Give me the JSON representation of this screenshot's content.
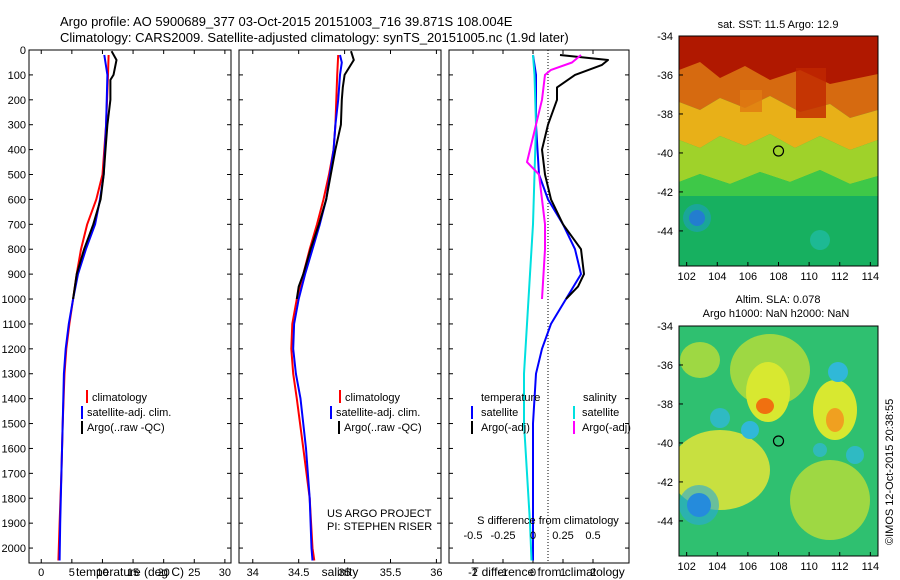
{
  "header": {
    "line1": "Argo profile: AO 5900689_377 03-Oct-2015 20151003_716 39.871S 108.004E",
    "line2": "Climatology: CARS2009. Satellite-adjusted climatology: synTS_20151005.nc (1.9d later)"
  },
  "colors": {
    "climatology": "#ff0000",
    "satellite": "#0000ff",
    "argo": "#000000",
    "salinity_satellite": "#00e0e0",
    "salinity_argo_adj": "#ff00ff"
  },
  "depth_ticks": [
    "0",
    "100",
    "200",
    "300",
    "400",
    "500",
    "600",
    "700",
    "800",
    "900",
    "1000",
    "1100",
    "1200",
    "1300",
    "1400",
    "1500",
    "1600",
    "1700",
    "1800",
    "1900",
    "2000"
  ],
  "chart_data": [
    {
      "type": "line",
      "title": "",
      "xlabel": "temperature (deg C)",
      "ylabel": "",
      "xlim": [
        -2,
        31
      ],
      "ylim": [
        2060,
        0
      ],
      "xticks": [
        "0",
        "5",
        "10",
        "15",
        "20",
        "25",
        "30"
      ],
      "xtick_values": [
        0,
        5,
        10,
        15,
        20,
        25,
        30
      ],
      "legend": [
        "climatology",
        "satellite-adj. clim.",
        "Argo(..raw -QC)"
      ],
      "legend_placement": "lower-center",
      "series": [
        {
          "name": "climatology",
          "color": "#ff0000",
          "points": [
            [
              11,
              20
            ],
            [
              10.9,
              100
            ],
            [
              10.6,
              300
            ],
            [
              10,
              500
            ],
            [
              9,
              600
            ],
            [
              7.5,
              700
            ],
            [
              6.5,
              800
            ],
            [
              5.8,
              900
            ],
            [
              5.2,
              1000
            ],
            [
              4.6,
              1100
            ],
            [
              4.1,
              1200
            ],
            [
              3.8,
              1300
            ],
            [
              3.5,
              1500
            ],
            [
              3.3,
              1700
            ],
            [
              3.0,
              1900
            ],
            [
              2.8,
              2050
            ]
          ]
        },
        {
          "name": "satellite-adj. clim.",
          "color": "#0000ff",
          "points": [
            [
              10.3,
              20
            ],
            [
              10.8,
              100
            ],
            [
              10.6,
              300
            ],
            [
              10.2,
              500
            ],
            [
              9.6,
              600
            ],
            [
              8.8,
              700
            ],
            [
              7.3,
              800
            ],
            [
              6,
              900
            ],
            [
              5.2,
              1000
            ],
            [
              4.5,
              1100
            ],
            [
              4,
              1200
            ],
            [
              3.7,
              1300
            ],
            [
              3.5,
              1500
            ],
            [
              3.3,
              1700
            ],
            [
              3.1,
              1900
            ],
            [
              3.0,
              2050
            ]
          ]
        },
        {
          "name": "Argo(..raw -QC)",
          "color": "#000000",
          "points": [
            [
              11.5,
              5
            ],
            [
              12.3,
              40
            ],
            [
              11.8,
              100
            ],
            [
              11.3,
              120
            ],
            [
              11.3,
              200
            ],
            [
              10.8,
              300
            ],
            [
              10.5,
              400
            ],
            [
              10.2,
              500
            ],
            [
              9.7,
              600
            ],
            [
              8.5,
              700
            ],
            [
              7,
              800
            ],
            [
              5.8,
              900
            ],
            [
              5.2,
              1000
            ]
          ]
        }
      ]
    },
    {
      "type": "line",
      "title": "",
      "xlabel": "salinity",
      "ylabel": "",
      "xlim": [
        33.85,
        36.05
      ],
      "ylim": [
        2060,
        0
      ],
      "xticks": [
        "34",
        "34.5",
        "35",
        "35.5",
        "36"
      ],
      "xtick_values": [
        34,
        34.5,
        35,
        35.5,
        36
      ],
      "legend": [
        "climatology",
        "satellite-adj. clim.",
        "Argo(..raw -QC)"
      ],
      "legend_placement": "lower-right",
      "annotations": [
        "US ARGO PROJECT",
        "PI: STEPHEN RISER"
      ],
      "series": [
        {
          "name": "climatology",
          "color": "#ff0000",
          "points": [
            [
              34.93,
              20
            ],
            [
              34.92,
              100
            ],
            [
              34.91,
              200
            ],
            [
              34.9,
              300
            ],
            [
              34.88,
              400
            ],
            [
              34.83,
              500
            ],
            [
              34.77,
              600
            ],
            [
              34.7,
              700
            ],
            [
              34.62,
              800
            ],
            [
              34.55,
              900
            ],
            [
              34.48,
              1000
            ],
            [
              34.43,
              1100
            ],
            [
              34.42,
              1200
            ],
            [
              34.44,
              1300
            ],
            [
              34.48,
              1400
            ],
            [
              34.55,
              1600
            ],
            [
              34.62,
              1800
            ],
            [
              34.65,
              2000
            ],
            [
              34.67,
              2050
            ]
          ]
        },
        {
          "name": "satellite-adj. clim.",
          "color": "#0000ff",
          "points": [
            [
              34.95,
              20
            ],
            [
              34.97,
              50
            ],
            [
              34.95,
              100
            ],
            [
              34.93,
              200
            ],
            [
              34.9,
              300
            ],
            [
              34.88,
              400
            ],
            [
              34.84,
              500
            ],
            [
              34.8,
              600
            ],
            [
              34.73,
              700
            ],
            [
              34.65,
              800
            ],
            [
              34.57,
              900
            ],
            [
              34.5,
              1000
            ],
            [
              34.45,
              1100
            ],
            [
              34.44,
              1200
            ],
            [
              34.47,
              1300
            ],
            [
              34.52,
              1400
            ],
            [
              34.58,
              1600
            ],
            [
              34.62,
              1800
            ],
            [
              34.64,
              2000
            ],
            [
              34.65,
              2050
            ]
          ]
        },
        {
          "name": "Argo(..raw -QC)",
          "color": "#000000",
          "points": [
            [
              35.07,
              5
            ],
            [
              35.1,
              40
            ],
            [
              35.0,
              100
            ],
            [
              34.98,
              150
            ],
            [
              34.97,
              200
            ],
            [
              34.96,
              300
            ],
            [
              34.9,
              400
            ],
            [
              34.85,
              500
            ],
            [
              34.8,
              600
            ],
            [
              34.72,
              700
            ],
            [
              34.63,
              800
            ],
            [
              34.55,
              900
            ],
            [
              34.5,
              950
            ],
            [
              34.48,
              1000
            ]
          ]
        }
      ]
    },
    {
      "type": "line",
      "title": "",
      "xlabel": "T difference from climatology",
      "xlabel_top": "S difference from climatology",
      "ylabel": "",
      "xlim": [
        -2.8,
        3.2
      ],
      "ylim": [
        2060,
        0
      ],
      "xticks": [
        "-2",
        "-1",
        "0",
        "1",
        "2"
      ],
      "xtick_values": [
        -2,
        -1,
        0,
        1,
        2
      ],
      "xticks_top": [
        "-0.5",
        "-0.25",
        "0",
        "0.25",
        "0.5"
      ],
      "legend": [
        "temperature",
        "satellite",
        "Argo(-adj)",
        "salinity",
        "satellite",
        "Argo(-adj)"
      ],
      "legend_placement": "lower-center",
      "series": [
        {
          "name": "satellite",
          "color": "#0000ff",
          "points": [
            [
              0,
              20
            ],
            [
              0.1,
              100
            ],
            [
              0.1,
              300
            ],
            [
              0.2,
              500
            ],
            [
              0.5,
              600
            ],
            [
              1.0,
              700
            ],
            [
              1.4,
              800
            ],
            [
              1.6,
              900
            ],
            [
              1.1,
              1000
            ],
            [
              0.6,
              1100
            ],
            [
              0.3,
              1200
            ],
            [
              0.1,
              1300
            ],
            [
              0,
              1500
            ],
            [
              0,
              1700
            ],
            [
              0,
              1900
            ],
            [
              0,
              2050
            ]
          ]
        },
        {
          "name": "Argo(-adj)",
          "color": "#000000",
          "points": [
            [
              0.9,
              20
            ],
            [
              2.5,
              40
            ],
            [
              2.3,
              60
            ],
            [
              1.4,
              100
            ],
            [
              0.8,
              150
            ],
            [
              0.8,
              200
            ],
            [
              0.5,
              300
            ],
            [
              0.3,
              400
            ],
            [
              0.4,
              500
            ],
            [
              0.6,
              600
            ],
            [
              1.0,
              700
            ],
            [
              1.6,
              800
            ],
            [
              1.7,
              900
            ],
            [
              1.5,
              950
            ],
            [
              1.1,
              1000
            ]
          ]
        },
        {
          "name": "satellite",
          "color": "#00e0e0",
          "points": [
            [
              0,
              20
            ],
            [
              0.05,
              100
            ],
            [
              0.1,
              300
            ],
            [
              0.05,
              500
            ],
            [
              0,
              700
            ],
            [
              -0.1,
              900
            ],
            [
              -0.2,
              1100
            ],
            [
              -0.3,
              1300
            ],
            [
              -0.3,
              1500
            ],
            [
              -0.2,
              1700
            ],
            [
              -0.1,
              1900
            ],
            [
              -0.05,
              2050
            ]
          ]
        },
        {
          "name": "Argo(-adj)",
          "color": "#ff00ff",
          "points": [
            [
              1.6,
              20
            ],
            [
              1.3,
              50
            ],
            [
              0.6,
              80
            ],
            [
              0.4,
              100
            ],
            [
              0.3,
              200
            ],
            [
              0.1,
              300
            ],
            [
              -0.1,
              400
            ],
            [
              -0.2,
              450
            ],
            [
              0.2,
              500
            ],
            [
              0.3,
              600
            ],
            [
              0.4,
              700
            ],
            [
              0.4,
              800
            ],
            [
              0.35,
              900
            ],
            [
              0.3,
              1000
            ]
          ]
        }
      ]
    },
    {
      "type": "heatmap",
      "title": "sat. SST: 11.5 Argo: 12.9",
      "xlim": [
        101.5,
        114.5
      ],
      "ylim": [
        -45.8,
        -34
      ],
      "xticks": [
        "102",
        "104",
        "106",
        "108",
        "110",
        "112",
        "114"
      ],
      "yticks": [
        "-34",
        "-36",
        "-38",
        "-40",
        "-42",
        "-44"
      ],
      "marker": {
        "lon": 108.0,
        "lat": -39.9
      }
    },
    {
      "type": "heatmap",
      "title": "Altim. SLA: 0.078",
      "subtitle": "Argo h1000: NaN h2000: NaN",
      "xlim": [
        101.5,
        114.5
      ],
      "ylim": [
        -45.8,
        -34
      ],
      "xticks": [
        "102",
        "104",
        "106",
        "108",
        "110",
        "112",
        "114"
      ],
      "yticks": [
        "-34",
        "-36",
        "-38",
        "-40",
        "-42",
        "-44"
      ],
      "marker": {
        "lon": 108.0,
        "lat": -39.9
      }
    }
  ],
  "credit": "©IMOS 12-Oct-2015 20:38:55"
}
